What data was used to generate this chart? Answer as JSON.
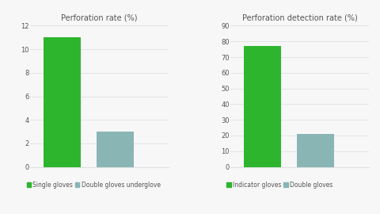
{
  "chart1": {
    "title": "Perforation rate (%)",
    "values": [
      11.0,
      3.0
    ],
    "colors": [
      "#2db52d",
      "#8ab5b5"
    ],
    "ylim": [
      0,
      12
    ],
    "yticks": [
      0,
      2,
      4,
      6,
      8,
      10,
      12
    ],
    "legend_labels": [
      "Single gloves",
      "Double gloves underglove"
    ]
  },
  "chart2": {
    "title": "Perforation detection rate (%)",
    "values": [
      77.0,
      21.0
    ],
    "colors": [
      "#2db52d",
      "#8ab5b5"
    ],
    "ylim": [
      0,
      90
    ],
    "yticks": [
      0,
      10,
      20,
      30,
      40,
      50,
      60,
      70,
      80,
      90
    ],
    "legend_labels": [
      "Indicator gloves",
      "Double gloves"
    ]
  },
  "background_color": "#f7f7f7",
  "title_fontsize": 7.0,
  "tick_fontsize": 6.0,
  "legend_fontsize": 5.5,
  "green_color": "#2db52d",
  "grey_color": "#8ab5b5",
  "grid_color": "#e0e0e0",
  "text_color": "#555555"
}
